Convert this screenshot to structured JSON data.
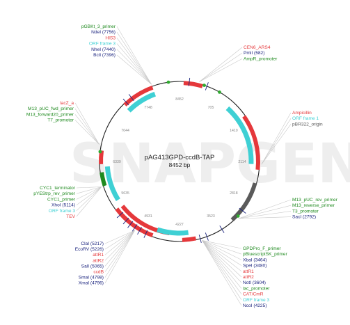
{
  "plasmid": {
    "name": "pAG413GPD-ccdB-TAP",
    "length_label": "8452 bp"
  },
  "watermark": "SNAPGENE",
  "colors": {
    "red": "#e5383b",
    "green": "#1f8a1f",
    "navy": "#1a237e",
    "cyan": "#3fd0d4",
    "gray": "#5a5a5a",
    "lightgreen": "#2faa2f"
  },
  "ticks": [
    "8452",
    "705",
    "1410",
    "2114",
    "2818",
    "3523",
    "4227",
    "4931",
    "5635",
    "6339",
    "7044",
    "7748"
  ],
  "labels": {
    "top_left": [
      {
        "text": "pGBKt_3_primer",
        "color": "green"
      },
      {
        "text": "NdeI (7756)",
        "color": "navy"
      },
      {
        "text": "HIS3",
        "color": "red"
      },
      {
        "text": "ORF frame 3",
        "color": "cyan"
      },
      {
        "text": "NheI (7440)",
        "color": "navy"
      },
      {
        "text": "BclI (7396)",
        "color": "navy"
      }
    ],
    "left": [
      {
        "text": "lacZ_a",
        "color": "red"
      },
      {
        "text": "M13_pUC_fwd_primer",
        "color": "green"
      },
      {
        "text": "M13_forward20_primer",
        "color": "green"
      },
      {
        "text": "T7_promoter",
        "color": "green"
      }
    ],
    "left_lower": [
      {
        "text": "CYC1_terminator",
        "color": "green"
      },
      {
        "text": "pYEStrp_rev_primer",
        "color": "green"
      },
      {
        "text": "CYC1_primer",
        "color": "green"
      },
      {
        "text": "XhoI (5114)",
        "color": "navy"
      },
      {
        "text": "ORF frame 3",
        "color": "cyan"
      },
      {
        "text": "TEV",
        "color": "red"
      }
    ],
    "bottom_left": [
      {
        "text": "ClaI (5217)",
        "color": "navy"
      },
      {
        "text": "EcoRV (5226)",
        "color": "navy"
      },
      {
        "text": "attR1",
        "color": "red"
      },
      {
        "text": "attR2",
        "color": "red"
      },
      {
        "text": "SalI (5065)",
        "color": "navy"
      },
      {
        "text": "ccdB",
        "color": "red"
      },
      {
        "text": "SmaI (4798)",
        "color": "navy"
      },
      {
        "text": "XmaI (4796)",
        "color": "navy"
      }
    ],
    "top_right": [
      {
        "text": "CEN6_ARS4",
        "color": "red"
      },
      {
        "text": "PmlI (582)",
        "color": "navy"
      },
      {
        "text": "AmpR_promoter",
        "color": "green"
      }
    ],
    "right": [
      {
        "text": "Ampicillin",
        "color": "red"
      },
      {
        "text": "ORF frame 1",
        "color": "cyan"
      },
      {
        "text": "pBR322_origin",
        "color": "gray"
      }
    ],
    "right_lower": [
      {
        "text": "M13_pUC_rev_primer",
        "color": "green"
      },
      {
        "text": "M13_reverse_primer",
        "color": "green"
      },
      {
        "text": "T3_promoter",
        "color": "green"
      },
      {
        "text": "SacI (2792)",
        "color": "navy"
      }
    ],
    "bottom_right": [
      {
        "text": "GPDPro_F_primer",
        "color": "green"
      },
      {
        "text": "pBluescriptSK_primer",
        "color": "green"
      },
      {
        "text": "XbaI (3464)",
        "color": "navy"
      },
      {
        "text": "SpeI (3480)",
        "color": "navy"
      },
      {
        "text": "attR1",
        "color": "red"
      },
      {
        "text": "attR2",
        "color": "red"
      },
      {
        "text": "NotI (3604)",
        "color": "navy"
      },
      {
        "text": "lac_promoter",
        "color": "green"
      },
      {
        "text": "CAT/CmR",
        "color": "red"
      },
      {
        "text": "ORF frame 3",
        "color": "cyan"
      },
      {
        "text": "NcoI (4225)",
        "color": "navy"
      }
    ]
  }
}
